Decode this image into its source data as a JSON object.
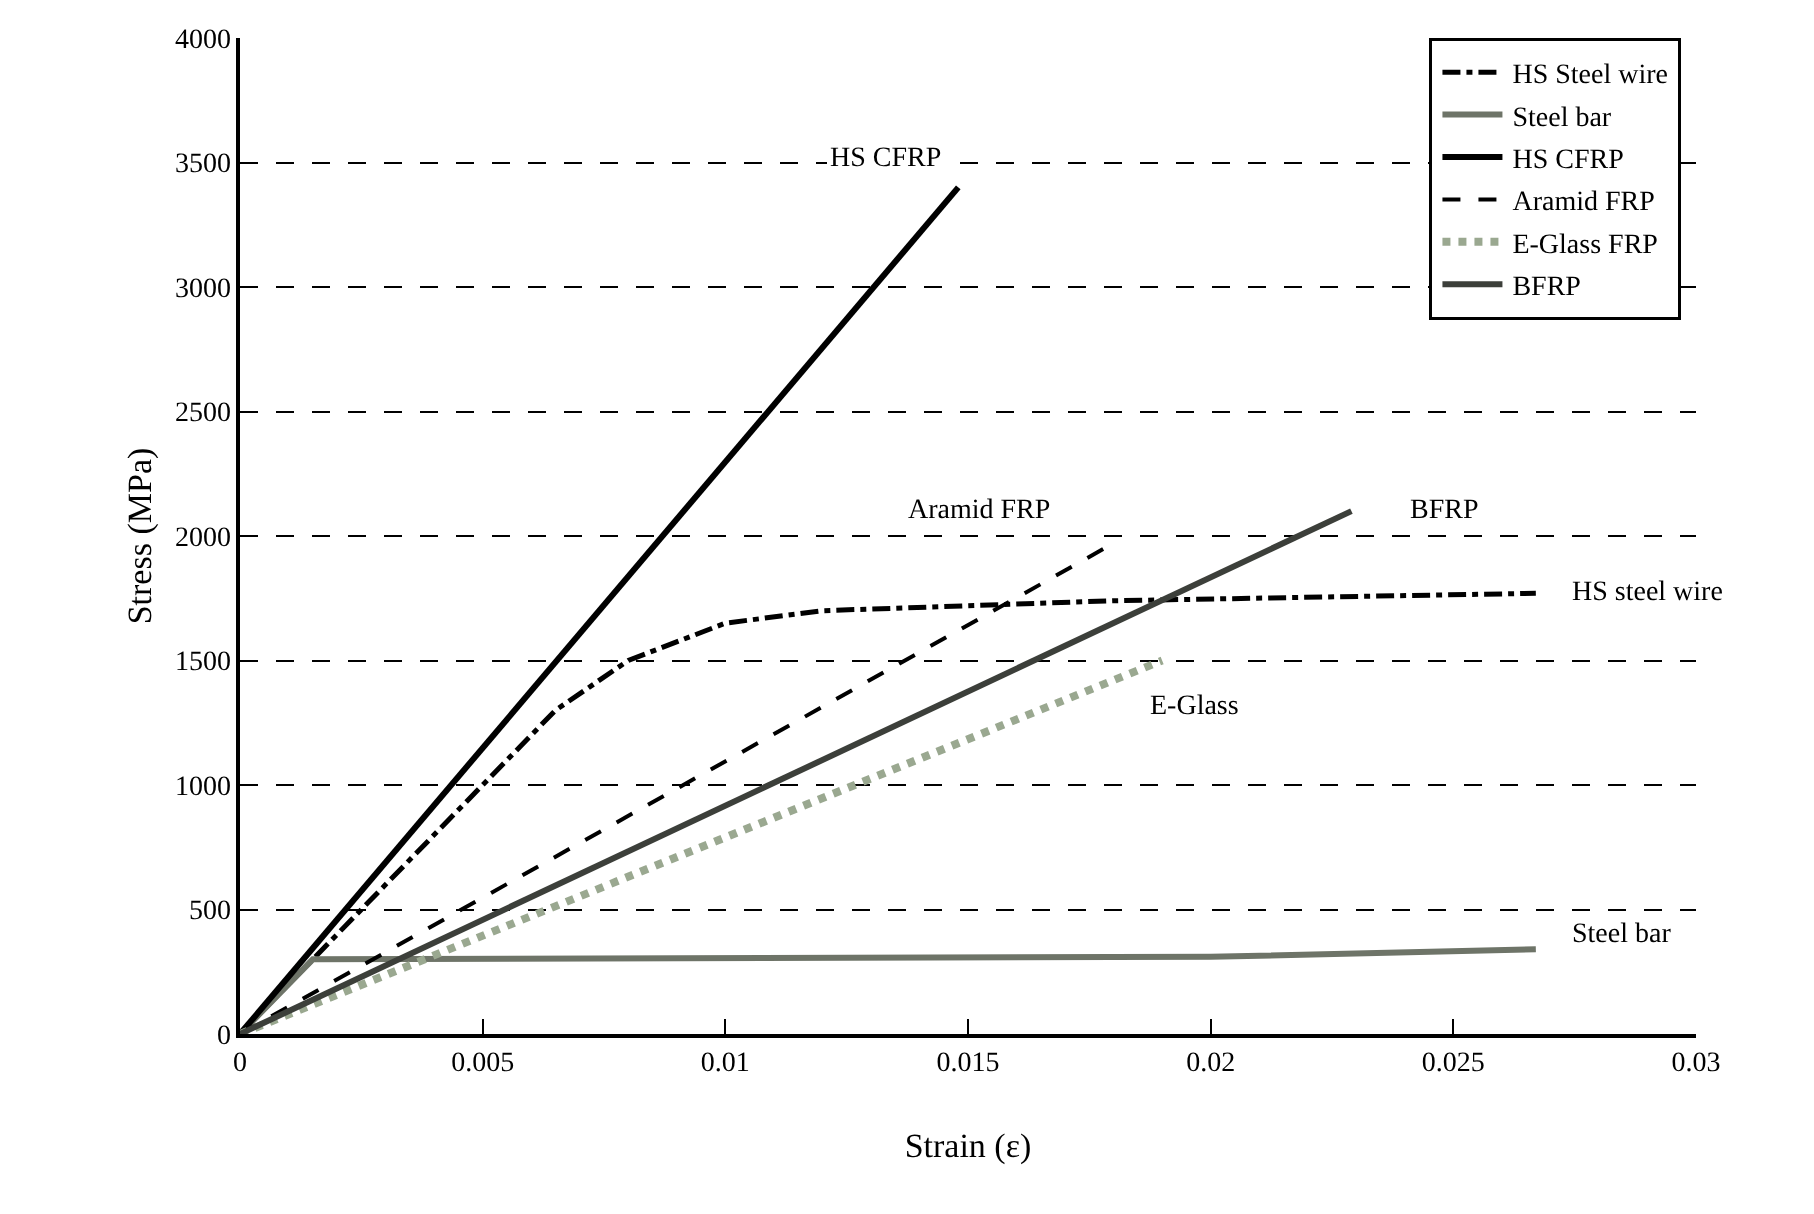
{
  "chart_data": {
    "type": "line",
    "xlabel": "Strain (ε)",
    "ylabel": "Stress (MPa)",
    "xlim": [
      0,
      0.03
    ],
    "xticks": [
      0,
      0.005,
      0.01,
      0.015,
      0.02,
      0.025,
      0.03
    ],
    "ylim": [
      0,
      4000
    ],
    "yticks": [
      0,
      500,
      1000,
      1500,
      2000,
      2500,
      3000,
      3500,
      4000
    ],
    "grid": "y",
    "legend": "top right",
    "marker": "none",
    "series": [
      {
        "name": "HS Steel wire",
        "color": "#000000",
        "line_style": "dashdot",
        "x": [
          0,
          0.003,
          0.0065,
          0.008,
          0.01,
          0.012,
          0.018,
          0.0267
        ],
        "values": [
          0,
          600,
          1300,
          1500,
          1650,
          1700,
          1740,
          1770
        ]
      },
      {
        "name": "Steel bar",
        "color": "#6e7468",
        "line_style": "solid",
        "x": [
          0,
          0.0015,
          0.02,
          0.0267
        ],
        "values": [
          0,
          300,
          310,
          340
        ]
      },
      {
        "name": "HS CFRP",
        "color": "#000000",
        "line_style": "solid",
        "x": [
          0,
          0.0148
        ],
        "values": [
          0,
          3400
        ]
      },
      {
        "name": "Aramid FRP",
        "color": "#000000",
        "line_style": "dashed",
        "x": [
          0,
          0.0179
        ],
        "values": [
          0,
          1960
        ]
      },
      {
        "name": "E-Glass FRP",
        "color": "#9aa890",
        "line_style": "dotted",
        "x": [
          0,
          0.019
        ],
        "values": [
          0,
          1500
        ]
      },
      {
        "name": "BFRP",
        "color": "#3c3f3a",
        "line_style": "solid",
        "x": [
          0,
          0.0229
        ],
        "values": [
          0,
          2100
        ]
      }
    ],
    "annotations": [
      "HS CFRP",
      "Aramid FRP",
      "BFRP",
      "HS steel wire",
      "E-Glass",
      "Steel bar"
    ]
  }
}
